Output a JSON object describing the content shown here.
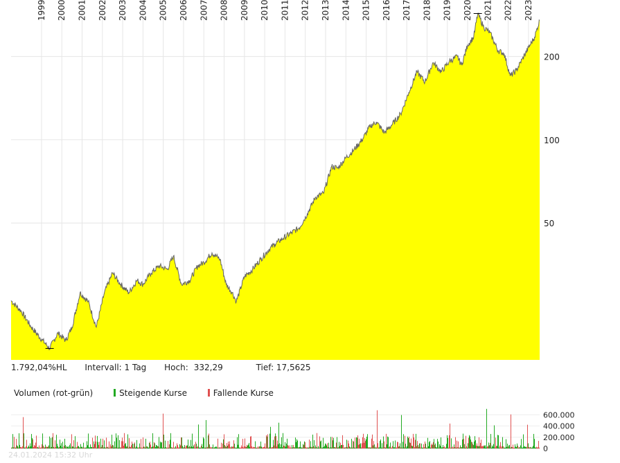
{
  "info": {
    "performance": "1.792,04%HL",
    "interval": "Intervall: 1 Tag",
    "high_label": "Hoch:",
    "high_value": "332,29",
    "low": "Tief: 17,5625"
  },
  "volume_legend": {
    "title": "Volumen (rot-grün)",
    "up_label": "Steigende Kurse",
    "down_label": "Fallende Kurse"
  },
  "timestamp": "24.01.2024 15:32 Uhr",
  "colors": {
    "fill": "#ffff00",
    "line": "#666666",
    "up": "#22aa22",
    "down": "#e05050",
    "grid": "#e6e6e6"
  },
  "chart_data": [
    {
      "type": "area",
      "x_tick_labels": [
        "1999",
        "2000",
        "2001",
        "2002",
        "2003",
        "2004",
        "2005",
        "2006",
        "2007",
        "2008",
        "2009",
        "2010",
        "2011",
        "2012",
        "2013",
        "2014",
        "2015",
        "2016",
        "2017",
        "2018",
        "2019",
        "2020",
        "2021",
        "2022",
        "2023"
      ],
      "y_tick_labels": [
        "200",
        "100",
        "50"
      ],
      "y_scale": "log",
      "grid": true,
      "series": [
        {
          "x": [
            1998.0,
            1998.5,
            1999.0,
            1999.5,
            1999.9,
            2000.3,
            2000.7,
            2001.0,
            2001.4,
            2001.8,
            2002.2,
            2002.6,
            2003.0,
            2003.4,
            2003.8,
            2004.2,
            2004.5,
            2004.9,
            2005.3,
            2005.7,
            2006.0,
            2006.4,
            2006.8,
            2007.2,
            2007.5,
            2007.9,
            2008.3,
            2008.6,
            2008.9,
            2009.1,
            2009.5,
            2009.9,
            2010.3,
            2010.7,
            2011.0,
            2011.4,
            2011.8,
            2012.2,
            2012.6,
            2013.0,
            2013.4,
            2013.8,
            2014.1,
            2014.5,
            2014.9,
            2015.3,
            2015.7,
            2016.0,
            2016.4,
            2016.8,
            2017.2,
            2017.6,
            2018.0,
            2018.4,
            2018.8,
            2019.2,
            2019.6,
            2020.0,
            2020.2,
            2020.5,
            2020.8,
            2021.0,
            2021.3,
            2021.6,
            2022.0,
            2022.3,
            2022.6,
            2022.9,
            2023.2,
            2023.5,
            2023.8,
            2024.05
          ],
          "y": [
            26.2,
            24.0,
            21.0,
            19.0,
            17.6,
            20.0,
            18.8,
            21.0,
            28.0,
            26.0,
            21.0,
            28.0,
            33.0,
            30.0,
            28.0,
            31.0,
            30.0,
            33.0,
            35.0,
            34.0,
            38.0,
            30.0,
            31.0,
            35.0,
            36.0,
            39.0,
            37.0,
            30.0,
            28.0,
            26.0,
            32.0,
            34.0,
            37.0,
            40.0,
            42.0,
            44.0,
            46.0,
            48.0,
            54.0,
            62.0,
            64.0,
            80.0,
            79.0,
            86.0,
            92.0,
            100.0,
            112.0,
            116.0,
            106.0,
            114.0,
            124.0,
            148.0,
            176.0,
            162.0,
            190.0,
            176.0,
            192.0,
            200.0,
            186.0,
            220.0,
            235.0,
            286.0,
            255.0,
            244.0,
            210.0,
            205.0,
            170.0,
            178.0,
            196.0,
            215.0,
            235.0,
            270.0
          ],
          "name": ""
        }
      ],
      "annotations": [
        "Hoch",
        "Tief"
      ]
    },
    {
      "type": "bar",
      "y_tick_labels": [
        "600.000",
        "400.000",
        "200.000",
        "0"
      ],
      "ylim": [
        0,
        800000
      ],
      "series": [
        {
          "name": "Steigende Kurse"
        },
        {
          "name": "Fallende Kurse"
        }
      ]
    }
  ]
}
